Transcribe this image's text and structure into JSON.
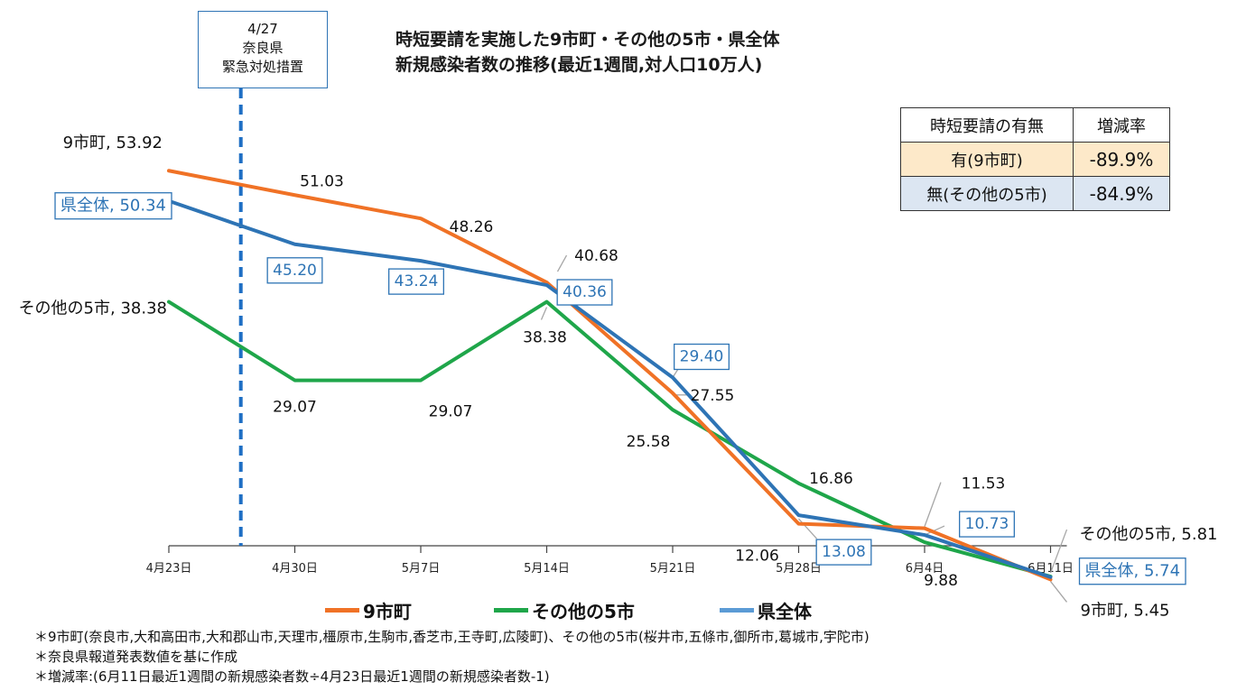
{
  "title": {
    "line1": "時短要請を実施した9市町・その他の5市・県全体",
    "line2": "新規感染者数の推移(最近1週間,対人口10万人)"
  },
  "event": {
    "date": "4/27",
    "line2": "奈良県",
    "line3": "緊急対処措置"
  },
  "rate_table": {
    "header": [
      "時短要請の有無",
      "増減率"
    ],
    "rows": [
      {
        "label": "有(9市町)",
        "value": "-89.9%"
      },
      {
        "label": "無(その他の5市)",
        "value": "-84.9%"
      }
    ]
  },
  "notes": [
    "＊9市町(奈良市,大和高田市,大和郡山市,天理市,橿原市,生駒市,香芝市,王寺町,広陵町)、その他の5市(桜井市,五條市,御所市,葛城市,宇陀市)",
    "＊奈良県報道発表数値を基に作成",
    "＊増減率:(6月11日最近1週間の新規感染者数÷4月23日最近1週間の新規感染者数-1)"
  ],
  "chart_data": {
    "type": "line",
    "title": "時短要請を実施した9市町・その他の5市・県全体 新規感染者数の推移(最近1週間,対人口10万人)",
    "categories": [
      "4月23日",
      "4月30日",
      "5月7日",
      "5月14日",
      "5月21日",
      "5月28日",
      "6月4日",
      "6月11日"
    ],
    "ylim": [
      0,
      60
    ],
    "grid": false,
    "legend_position": "bottom",
    "event_marker": {
      "x": "4/27",
      "label": "4/27 奈良県 緊急対処措置"
    },
    "series": [
      {
        "name": "9市町",
        "color": "#f07226",
        "values": [
          53.92,
          51.03,
          48.26,
          40.68,
          27.55,
          12.06,
          11.53,
          5.45
        ],
        "labels": [
          "9市町, 53.92",
          "51.03",
          "48.26",
          "40.68",
          "27.55",
          "12.06",
          "11.53",
          "9市町, 5.45"
        ]
      },
      {
        "name": "その他の5市",
        "color": "#1fa64a",
        "values": [
          38.38,
          29.07,
          29.07,
          38.38,
          25.58,
          16.86,
          9.88,
          5.81
        ],
        "labels": [
          "その他の5市, 38.38",
          "29.07",
          "29.07",
          "38.38",
          "25.58",
          "16.86",
          "9.88",
          "その他の5市, 5.81"
        ]
      },
      {
        "name": "県全体",
        "color": "#2e74b5",
        "values": [
          50.34,
          45.2,
          43.24,
          40.36,
          29.4,
          13.08,
          10.73,
          5.74
        ],
        "labels": [
          "県全体, 50.34",
          "45.20",
          "43.24",
          "40.36",
          "29.40",
          "13.08",
          "10.73",
          "県全体, 5.74"
        ]
      }
    ]
  }
}
